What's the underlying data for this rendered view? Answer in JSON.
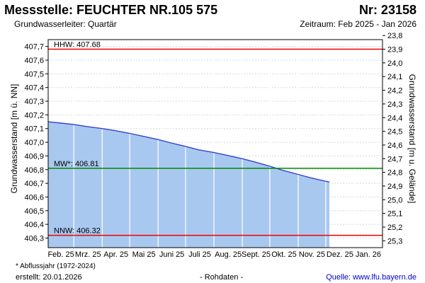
{
  "header": {
    "title": "Messstelle: FEUCHTER NR.105 575",
    "nr": "Nr: 23158",
    "aquifer": "Grundwasserleiter: Quartär",
    "period": "Zeitraum: Feb 2025 - Jan 2026"
  },
  "footer": {
    "note": "* Abflussjahr (1972-2024)",
    "created": "erstellt:  20.01.2026",
    "rawdata": "- Rohdaten -",
    "source": "Quelle: www.lfu.bayern.de"
  },
  "colors": {
    "fill": "#a8c8f0",
    "line": "#3344cc",
    "hhw": "#ee0000",
    "mw": "#008800",
    "nnw": "#ee0000",
    "grid": "#d8d8d8",
    "month_grid": "#ffffff"
  },
  "chart_data": {
    "type": "area",
    "ylabel": "Grundwasserstand [m ü. NN]",
    "ylabel_right": "Grundwasserstand [m u. Gelände]",
    "ylim": [
      406.23,
      407.75
    ],
    "ground_level": 431.58,
    "y_ticks": [
      "406,3",
      "406,4",
      "406,5",
      "406,6",
      "406,7",
      "406,8",
      "406,9",
      "407,0",
      "407,1",
      "407,2",
      "407,3",
      "407,4",
      "407,5",
      "407,6",
      "407,7"
    ],
    "y_ticks_right": [
      "23,8",
      "23,9",
      "24,0",
      "24,1",
      "24,2",
      "24,3",
      "24,4",
      "24,5",
      "24,6",
      "24,7",
      "24,8",
      "24,9",
      "25,0",
      "25,1",
      "25,2",
      "25,3"
    ],
    "months": [
      "Feb. 25",
      "Mrz. 25",
      "Apr. 25",
      "Mai 25",
      "Juni 25",
      "Juli 25",
      "Aug. 25",
      "Sept. 25",
      "Okt. 25",
      "Nov. 25",
      "Dez. 25",
      "Jan. 26"
    ],
    "reference_lines": [
      {
        "label": "HHW: 407.68",
        "value": 407.68
      },
      {
        "label": "MW*: 406.81",
        "value": 406.81
      },
      {
        "label": "NNW: 406.32",
        "value": 406.32
      }
    ],
    "series": [
      {
        "x": [
          "2025-02-01",
          "2025-02-15",
          "2025-03-01",
          "2025-03-15",
          "2025-04-01",
          "2025-04-15",
          "2025-05-01",
          "2025-05-15",
          "2025-06-01",
          "2025-06-15",
          "2025-07-01",
          "2025-07-15",
          "2025-08-01",
          "2025-08-15",
          "2025-09-01",
          "2025-09-15",
          "2025-10-01",
          "2025-10-15",
          "2025-11-01",
          "2025-11-15",
          "2025-12-01",
          "2025-12-05"
        ],
        "y": [
          407.15,
          407.14,
          407.13,
          407.115,
          407.1,
          407.085,
          407.065,
          407.045,
          407.02,
          406.995,
          406.97,
          406.945,
          406.925,
          406.905,
          406.88,
          406.855,
          406.825,
          406.795,
          406.765,
          406.74,
          406.715,
          406.71
        ]
      }
    ]
  }
}
